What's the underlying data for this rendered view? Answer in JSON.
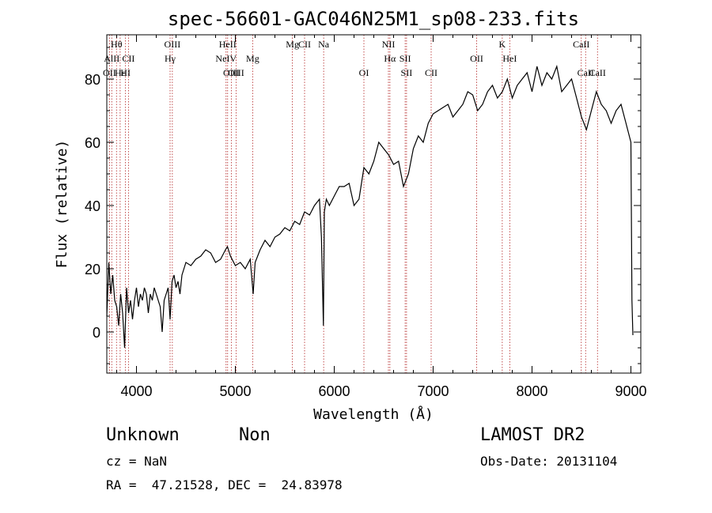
{
  "chart_data": {
    "type": "line",
    "title": "spec-56601-GAC046N25M1_sp08-233.fits",
    "xlabel": "Wavelength (Å)",
    "ylabel": "Flux (relative)",
    "xlim": [
      3700,
      9100
    ],
    "ylim": [
      -13,
      94
    ],
    "xticks": [
      4000,
      5000,
      6000,
      7000,
      8000,
      9000
    ],
    "yticks": [
      0,
      20,
      40,
      60,
      80
    ],
    "grid": false,
    "spectral_lines": [
      {
        "label": "Hθ",
        "wavelength": 3798,
        "row": 0
      },
      {
        "label": "AlII",
        "wavelength": 3750,
        "row": 1
      },
      {
        "label": "OII",
        "wavelength": 3727,
        "row": 2
      },
      {
        "label": "Hε",
        "wavelength": 3835,
        "row": 2
      },
      {
        "label": "HI",
        "wavelength": 3889,
        "row": 2
      },
      {
        "label": "CII",
        "wavelength": 3919,
        "row": 1
      },
      {
        "label": "OIII",
        "wavelength": 4363,
        "row": 0
      },
      {
        "label": "Hγ",
        "wavelength": 4340,
        "row": 1
      },
      {
        "label": "HeII",
        "wavelength": 4922,
        "row": 0
      },
      {
        "label": "NeIV",
        "wavelength": 4906,
        "row": 1
      },
      {
        "label": "OIII",
        "wavelength": 4959,
        "row": 2
      },
      {
        "label": "OIII",
        "wavelength": 5007,
        "row": 2
      },
      {
        "label": "Mg",
        "wavelength": 5175,
        "row": 1
      },
      {
        "label": "Mg",
        "wavelength": 5577,
        "row": 0
      },
      {
        "label": "CII",
        "wavelength": 5700,
        "row": 0
      },
      {
        "label": "Na",
        "wavelength": 5893,
        "row": 0
      },
      {
        "label": "OI",
        "wavelength": 6300,
        "row": 2
      },
      {
        "label": "NII",
        "wavelength": 6548,
        "row": 0
      },
      {
        "label": "Hα",
        "wavelength": 6563,
        "row": 1
      },
      {
        "label": "SII",
        "wavelength": 6717,
        "row": 1
      },
      {
        "label": "SII",
        "wavelength": 6731,
        "row": 2
      },
      {
        "label": "CII",
        "wavelength": 6980,
        "row": 2
      },
      {
        "label": "OII",
        "wavelength": 7440,
        "row": 1
      },
      {
        "label": "K",
        "wavelength": 7699,
        "row": 0
      },
      {
        "label": "HeI",
        "wavelength": 7775,
        "row": 1
      },
      {
        "label": "CaII",
        "wavelength": 8498,
        "row": 0
      },
      {
        "label": "CaII",
        "wavelength": 8542,
        "row": 2
      },
      {
        "label": "CaII",
        "wavelength": 8662,
        "row": 2
      }
    ],
    "series": [
      {
        "x": [
          3700,
          3720,
          3740,
          3760,
          3780,
          3800,
          3820,
          3840,
          3860,
          3880,
          3900,
          3920,
          3940,
          3960,
          3980,
          4000,
          4020,
          4040,
          4060,
          4080,
          4100,
          4120,
          4140,
          4160,
          4180,
          4200,
          4220,
          4240,
          4260,
          4280,
          4300,
          4320,
          4340,
          4360,
          4380,
          4400,
          4420,
          4440,
          4460,
          4480,
          4500,
          4550,
          4600,
          4650,
          4700,
          4750,
          4800,
          4850,
          4900,
          4920,
          4950,
          5000,
          5050,
          5100,
          5150,
          5180,
          5200,
          5250,
          5300,
          5350,
          5400,
          5450,
          5500,
          5550,
          5600,
          5650,
          5700,
          5750,
          5800,
          5850,
          5870,
          5890,
          5900,
          5920,
          5950,
          6000,
          6050,
          6100,
          6150,
          6200,
          6250,
          6300,
          6350,
          6400,
          6450,
          6500,
          6550,
          6600,
          6650,
          6700,
          6750,
          6800,
          6850,
          6900,
          6950,
          7000,
          7050,
          7100,
          7150,
          7200,
          7250,
          7300,
          7350,
          7400,
          7450,
          7500,
          7550,
          7600,
          7650,
          7700,
          7750,
          7800,
          7850,
          7900,
          7950,
          8000,
          8050,
          8100,
          8150,
          8200,
          8250,
          8300,
          8350,
          8400,
          8450,
          8500,
          8550,
          8600,
          8650,
          8700,
          8750,
          8800,
          8850,
          8900,
          8950,
          9000,
          9010,
          9020
        ],
        "y": [
          5,
          22,
          12,
          18,
          10,
          8,
          2,
          12,
          6,
          -5,
          14,
          6,
          10,
          4,
          10,
          14,
          8,
          12,
          10,
          14,
          12,
          6,
          12,
          10,
          14,
          12,
          10,
          8,
          0,
          10,
          12,
          14,
          4,
          16,
          18,
          14,
          16,
          12,
          18,
          20,
          22,
          21,
          23,
          24,
          26,
          25,
          22,
          23,
          26,
          27,
          24,
          21,
          22,
          20,
          23,
          12,
          22,
          26,
          29,
          27,
          30,
          31,
          33,
          32,
          35,
          34,
          38,
          37,
          40,
          42,
          30,
          2,
          38,
          42,
          40,
          43,
          46,
          46,
          47,
          40,
          42,
          52,
          50,
          54,
          60,
          58,
          56,
          53,
          54,
          46,
          50,
          58,
          62,
          60,
          66,
          69,
          70,
          71,
          72,
          68,
          70,
          72,
          76,
          75,
          70,
          72,
          76,
          78,
          74,
          76,
          80,
          74,
          78,
          80,
          82,
          76,
          84,
          78,
          82,
          80,
          84,
          76,
          78,
          80,
          74,
          68,
          64,
          70,
          76,
          72,
          70,
          66,
          70,
          72,
          66,
          60,
          10,
          -1
        ]
      }
    ]
  },
  "info": {
    "object_class": "Unknown",
    "subclass": "Non",
    "survey": "LAMOST DR2",
    "cz": "cz = NaN",
    "obs_date": "Obs-Date: 20131104",
    "radec": "RA =  47.21528, DEC =  24.83978"
  }
}
